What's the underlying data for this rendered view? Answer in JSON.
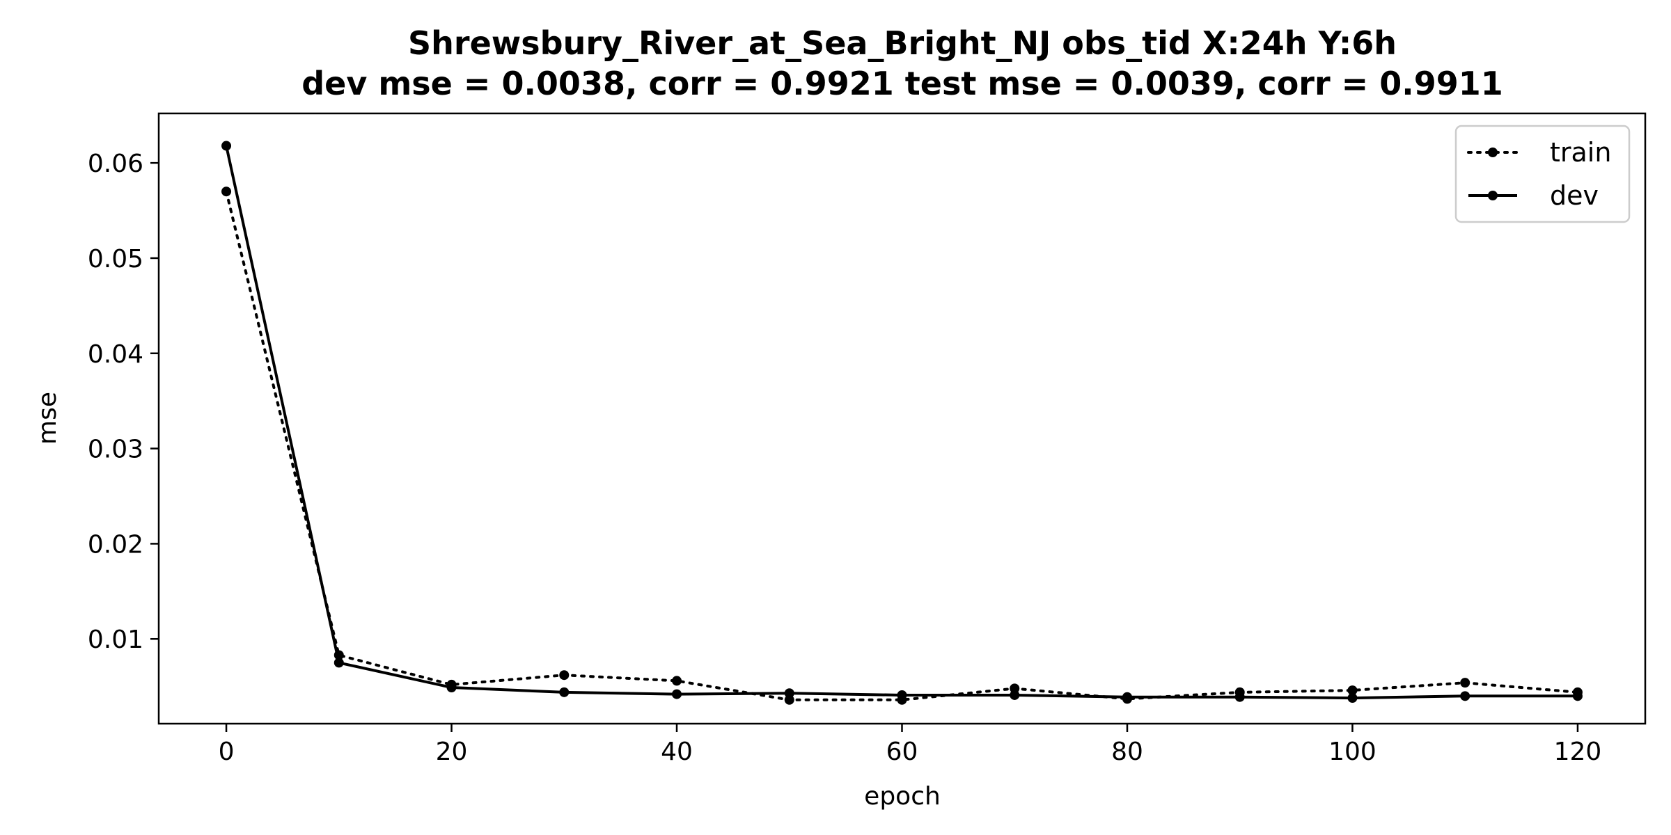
{
  "chart_data": {
    "type": "line",
    "title_line1": "Shrewsbury_River_at_Sea_Bright_NJ   obs_tid   X:24h   Y:6h",
    "title_line2": "dev mse = 0.0038, corr = 0.9921   test mse = 0.0039, corr = 0.9911",
    "xlabel": "epoch",
    "ylabel": "mse",
    "xlim": [
      -6,
      126
    ],
    "ylim": [
      0.0011,
      0.0652
    ],
    "xticks": [
      0,
      20,
      40,
      60,
      80,
      100,
      120
    ],
    "xtick_labels": [
      "0",
      "20",
      "40",
      "60",
      "80",
      "100",
      "120"
    ],
    "yticks": [
      0.01,
      0.02,
      0.03,
      0.04,
      0.05,
      0.06
    ],
    "ytick_labels": [
      "0.01",
      "0.02",
      "0.03",
      "0.04",
      "0.05",
      "0.06"
    ],
    "grid": false,
    "legend_position": "top-right",
    "x": [
      0,
      10,
      20,
      30,
      40,
      50,
      60,
      70,
      80,
      90,
      100,
      110,
      120
    ],
    "series": [
      {
        "name": "train",
        "style": "dotted",
        "color": "#000000",
        "values": [
          0.057,
          0.0083,
          0.0052,
          0.0062,
          0.0056,
          0.0036,
          0.0036,
          0.0048,
          0.0037,
          0.0044,
          0.0046,
          0.0054,
          0.0044
        ]
      },
      {
        "name": "dev",
        "style": "solid",
        "color": "#000000",
        "values": [
          0.0618,
          0.0075,
          0.0049,
          0.0044,
          0.0042,
          0.0043,
          0.0041,
          0.0041,
          0.0039,
          0.0039,
          0.0038,
          0.004,
          0.004
        ]
      }
    ]
  }
}
